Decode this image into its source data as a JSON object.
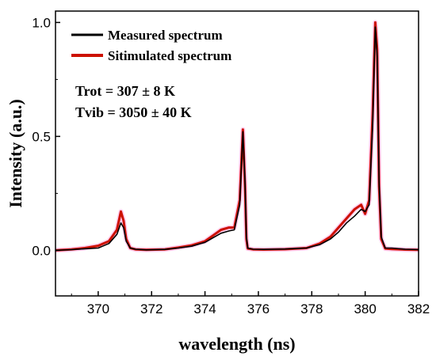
{
  "chart_data": {
    "type": "line",
    "xlabel": "wavelength (ns)",
    "ylabel": "Intensity (a.u.)",
    "xlim": [
      368.4,
      382
    ],
    "ylim": [
      -0.2,
      1.05
    ],
    "x_ticks": [
      370,
      372,
      374,
      376,
      378,
      380,
      382
    ],
    "x_tick_labels": [
      "370",
      "372",
      "374",
      "376",
      "378",
      "380",
      "382"
    ],
    "y_ticks": [
      0.0,
      0.5,
      1.0
    ],
    "y_tick_labels": [
      "0.0",
      "0.5",
      "1.0"
    ],
    "grid": false,
    "legend_position": "top-left",
    "annotations": [
      "Trot = 307 ± 8 K",
      "Tvib = 3050 ± 40 K"
    ],
    "series": [
      {
        "name": "Measured spectrum",
        "color": "#000000",
        "x": [
          368.4,
          369.0,
          369.5,
          370.0,
          370.4,
          370.7,
          370.85,
          370.95,
          371.05,
          371.2,
          371.4,
          371.8,
          372.5,
          373.0,
          373.5,
          374.0,
          374.3,
          374.6,
          374.9,
          375.1,
          375.3,
          375.42,
          375.5,
          375.55,
          375.6,
          375.8,
          376.2,
          377.0,
          377.8,
          378.3,
          378.7,
          379.0,
          379.3,
          379.6,
          379.85,
          380.0,
          380.15,
          380.28,
          380.38,
          380.45,
          380.52,
          380.6,
          380.75,
          381.0,
          381.5,
          382.0
        ],
        "y": [
          0.0,
          0.003,
          0.007,
          0.01,
          0.03,
          0.07,
          0.12,
          0.1,
          0.04,
          0.01,
          0.005,
          0.002,
          0.004,
          0.01,
          0.018,
          0.035,
          0.055,
          0.075,
          0.085,
          0.09,
          0.2,
          0.52,
          0.3,
          0.06,
          0.01,
          0.005,
          0.004,
          0.006,
          0.01,
          0.025,
          0.05,
          0.08,
          0.12,
          0.15,
          0.18,
          0.17,
          0.2,
          0.55,
          0.98,
          0.85,
          0.3,
          0.06,
          0.01,
          0.01,
          0.005,
          0.003
        ]
      },
      {
        "name": "Sitimulated spectrum",
        "color": "#cc1100",
        "x": [
          368.4,
          369.0,
          369.5,
          370.0,
          370.4,
          370.7,
          370.85,
          370.95,
          371.05,
          371.2,
          371.4,
          371.8,
          372.5,
          373.0,
          373.5,
          374.0,
          374.3,
          374.6,
          374.9,
          375.1,
          375.3,
          375.42,
          375.5,
          375.55,
          375.6,
          375.8,
          376.2,
          377.0,
          377.8,
          378.3,
          378.7,
          379.0,
          379.3,
          379.6,
          379.85,
          380.0,
          380.15,
          380.28,
          380.38,
          380.45,
          380.52,
          380.6,
          380.75,
          381.0,
          381.5,
          382.0
        ],
        "y": [
          0.0,
          0.004,
          0.01,
          0.02,
          0.04,
          0.09,
          0.17,
          0.13,
          0.05,
          0.01,
          0.004,
          0.002,
          0.004,
          0.012,
          0.022,
          0.04,
          0.065,
          0.09,
          0.1,
          0.1,
          0.22,
          0.53,
          0.28,
          0.05,
          0.008,
          0.004,
          0.003,
          0.005,
          0.01,
          0.03,
          0.06,
          0.1,
          0.14,
          0.18,
          0.2,
          0.16,
          0.22,
          0.6,
          1.0,
          0.88,
          0.28,
          0.05,
          0.008,
          0.006,
          0.003,
          0.002
        ]
      }
    ]
  }
}
